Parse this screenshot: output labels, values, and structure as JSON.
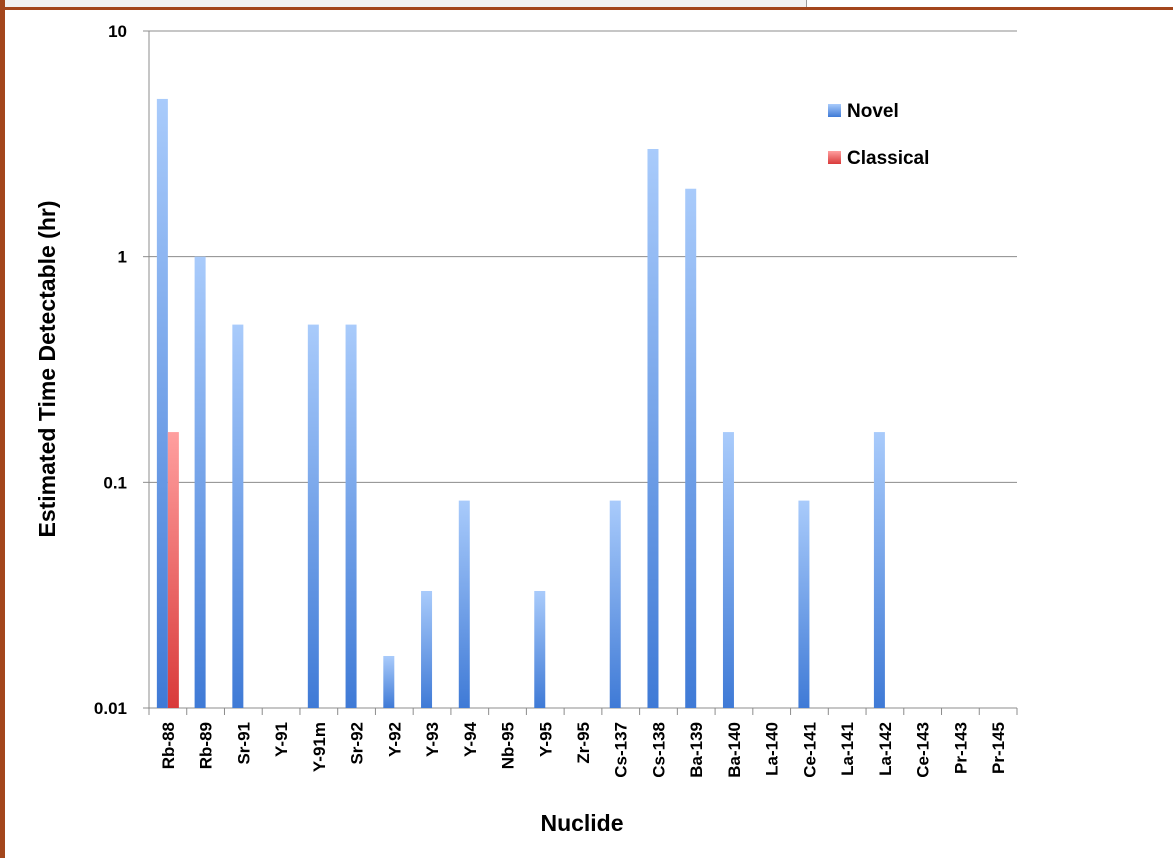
{
  "colors": {
    "novel_top": "#a9cbfb",
    "novel_bottom": "#3f7ad6",
    "classical_top": "#ff9f9f",
    "classical_bottom": "#d93a3a",
    "gridline": "#8c8c8c",
    "frame_accent": "#a3461c"
  },
  "chart_data": {
    "type": "bar",
    "scale": "log",
    "xlabel": "Nuclide",
    "ylabel": "Estimated Time Detectable (hr)",
    "ylim": [
      0.01,
      10
    ],
    "yticks": [
      "0.01",
      "0.1",
      "1",
      "10"
    ],
    "grid": true,
    "legend_position": "top-right",
    "categories": [
      "Rb-88",
      "Rb-89",
      "Sr-91",
      "Y-91",
      "Y-91m",
      "Sr-92",
      "Y-92",
      "Y-93",
      "Y-94",
      "Nb-95",
      "Y-95",
      "Zr-95",
      "Cs-137",
      "Cs-138",
      "Ba-139",
      "Ba-140",
      "La-140",
      "Ce-141",
      "La-141",
      "La-142",
      "Ce-143",
      "Pr-143",
      "Pr-145"
    ],
    "series": [
      {
        "name": "Novel",
        "values": [
          5,
          1,
          0.5,
          null,
          0.5,
          0.5,
          0.017,
          0.033,
          0.083,
          null,
          0.033,
          null,
          0.083,
          3,
          2,
          0.167,
          null,
          0.083,
          null,
          0.167,
          null,
          null,
          null
        ]
      },
      {
        "name": "Classical",
        "values": [
          0.167,
          null,
          null,
          null,
          null,
          null,
          null,
          null,
          null,
          null,
          null,
          null,
          null,
          null,
          null,
          null,
          null,
          null,
          null,
          null,
          null,
          null,
          null
        ]
      }
    ]
  }
}
